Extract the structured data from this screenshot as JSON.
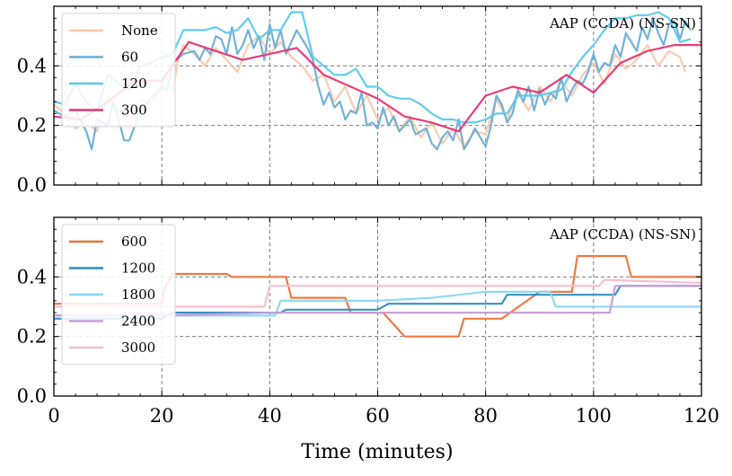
{
  "chart_data": [
    {
      "type": "line",
      "annotation": "AAP (CCDA) (NS-SN)",
      "xlim": [
        0,
        120
      ],
      "ylim": [
        0,
        0.6
      ],
      "xticks": [
        0,
        20,
        40,
        60,
        80,
        100,
        120
      ],
      "yticks": [
        "0.0",
        "0.2",
        "0.4"
      ],
      "ytick_values": [
        0,
        0.2,
        0.4
      ],
      "grid": true,
      "legend_position": "top-left",
      "series": [
        {
          "name": "None",
          "color": "#f8c9ad",
          "x": [
            0,
            2,
            4,
            6,
            8,
            10,
            12,
            14,
            16,
            18,
            20,
            21,
            22,
            23,
            24,
            26,
            28,
            30,
            32,
            34,
            36,
            38,
            40,
            42,
            44,
            46,
            48,
            50,
            52,
            54,
            56,
            58,
            60,
            62,
            64,
            66,
            68,
            70,
            72,
            74,
            76,
            78,
            80,
            82,
            84,
            86,
            88,
            90,
            92,
            94,
            96,
            98,
            100,
            102,
            104,
            106,
            108,
            110,
            112,
            114,
            116,
            117
          ],
          "y": [
            0.27,
            0.24,
            0.19,
            0.21,
            0.18,
            0.3,
            0.25,
            0.22,
            0.29,
            0.27,
            0.33,
            0.36,
            0.31,
            0.42,
            0.47,
            0.44,
            0.4,
            0.46,
            0.42,
            0.38,
            0.47,
            0.5,
            0.44,
            0.48,
            0.43,
            0.4,
            0.35,
            0.37,
            0.28,
            0.33,
            0.24,
            0.3,
            0.22,
            0.26,
            0.18,
            0.23,
            0.16,
            0.21,
            0.14,
            0.19,
            0.13,
            0.18,
            0.17,
            0.29,
            0.22,
            0.31,
            0.25,
            0.33,
            0.28,
            0.35,
            0.3,
            0.37,
            0.41,
            0.34,
            0.44,
            0.39,
            0.42,
            0.47,
            0.4,
            0.45,
            0.43,
            0.38
          ]
        },
        {
          "name": "60",
          "color": "#6aaed6",
          "x": [
            0,
            2,
            4,
            6,
            7,
            8,
            10,
            11,
            12,
            13,
            14,
            16,
            18,
            20,
            21,
            22,
            24,
            26,
            27,
            28,
            29,
            30,
            31,
            32,
            33,
            34,
            35,
            36,
            37,
            38,
            39,
            40,
            41,
            42,
            43,
            44,
            45,
            46,
            47,
            48,
            49,
            50,
            51,
            52,
            53,
            54,
            55,
            56,
            57,
            58,
            59,
            60,
            61,
            62,
            63,
            64,
            65,
            66,
            67,
            68,
            69,
            70,
            71,
            72,
            73,
            74,
            75,
            76,
            77,
            78,
            79,
            80,
            81,
            82,
            83,
            84,
            85,
            86,
            87,
            88,
            89,
            90,
            91,
            92,
            93,
            94,
            95,
            96,
            97,
            98,
            99,
            100,
            101,
            102,
            103,
            104,
            105,
            106,
            107,
            108,
            109,
            110,
            111,
            112,
            113,
            114,
            115,
            116,
            117,
            118
          ],
          "y": [
            0.25,
            0.23,
            0.25,
            0.18,
            0.12,
            0.22,
            0.2,
            0.28,
            0.22,
            0.15,
            0.15,
            0.25,
            0.29,
            0.33,
            0.32,
            0.41,
            0.44,
            0.45,
            0.42,
            0.46,
            0.44,
            0.5,
            0.49,
            0.44,
            0.53,
            0.44,
            0.47,
            0.52,
            0.46,
            0.5,
            0.42,
            0.54,
            0.46,
            0.52,
            0.44,
            0.48,
            0.52,
            0.49,
            0.46,
            0.42,
            0.33,
            0.27,
            0.31,
            0.26,
            0.28,
            0.22,
            0.25,
            0.24,
            0.31,
            0.2,
            0.21,
            0.19,
            0.26,
            0.2,
            0.23,
            0.18,
            0.2,
            0.22,
            0.17,
            0.18,
            0.19,
            0.14,
            0.12,
            0.16,
            0.18,
            0.15,
            0.22,
            0.12,
            0.15,
            0.19,
            0.16,
            0.13,
            0.2,
            0.3,
            0.27,
            0.21,
            0.24,
            0.32,
            0.28,
            0.33,
            0.25,
            0.32,
            0.27,
            0.31,
            0.29,
            0.36,
            0.28,
            0.32,
            0.35,
            0.34,
            0.38,
            0.44,
            0.38,
            0.41,
            0.4,
            0.47,
            0.43,
            0.51,
            0.48,
            0.45,
            0.53,
            0.49,
            0.56,
            0.51,
            0.47,
            0.54,
            0.55,
            0.49,
            0.55,
            0.52
          ]
        },
        {
          "name": "120",
          "color": "#5bc8ec",
          "x": [
            0,
            2,
            4,
            6,
            8,
            10,
            12,
            14,
            16,
            18,
            20,
            22,
            24,
            26,
            28,
            30,
            32,
            34,
            36,
            38,
            40,
            42,
            44,
            46,
            48,
            50,
            52,
            54,
            56,
            58,
            60,
            62,
            64,
            66,
            68,
            70,
            72,
            74,
            76,
            78,
            80,
            82,
            84,
            86,
            88,
            90,
            92,
            94,
            96,
            98,
            100,
            102,
            104,
            106,
            108,
            110,
            112,
            114,
            116,
            118
          ],
          "y": [
            0.28,
            0.27,
            0.34,
            0.28,
            0.25,
            0.37,
            0.34,
            0.32,
            0.4,
            0.41,
            0.43,
            0.44,
            0.52,
            0.52,
            0.52,
            0.53,
            0.51,
            0.52,
            0.56,
            0.49,
            0.52,
            0.52,
            0.58,
            0.58,
            0.43,
            0.4,
            0.37,
            0.37,
            0.39,
            0.33,
            0.33,
            0.3,
            0.29,
            0.29,
            0.27,
            0.24,
            0.22,
            0.22,
            0.21,
            0.21,
            0.22,
            0.24,
            0.24,
            0.3,
            0.3,
            0.3,
            0.31,
            0.32,
            0.38,
            0.43,
            0.47,
            0.52,
            0.56,
            0.56,
            0.57,
            0.57,
            0.58,
            0.56,
            0.48,
            0.49
          ]
        },
        {
          "name": "300",
          "color": "#e8336e",
          "x": [
            0,
            5,
            10,
            15,
            20,
            25,
            30,
            35,
            40,
            45,
            50,
            55,
            60,
            65,
            70,
            75,
            80,
            85,
            90,
            95,
            100,
            105,
            110,
            115,
            120
          ],
          "y": [
            0.23,
            0.22,
            0.28,
            0.35,
            0.35,
            0.48,
            0.45,
            0.42,
            0.44,
            0.46,
            0.37,
            0.33,
            0.29,
            0.23,
            0.21,
            0.18,
            0.3,
            0.33,
            0.31,
            0.37,
            0.31,
            0.41,
            0.45,
            0.47,
            0.47
          ]
        }
      ]
    },
    {
      "type": "line",
      "annotation": "AAP (CCDA) (NS-SN)",
      "xlim": [
        0,
        120
      ],
      "ylim": [
        0,
        0.6
      ],
      "xticks": [
        0,
        20,
        40,
        60,
        80,
        100,
        120
      ],
      "xtick_labels": [
        "0",
        "20",
        "40",
        "60",
        "80",
        "100",
        "120"
      ],
      "yticks": [
        "0.0",
        "0.2",
        "0.4"
      ],
      "ytick_values": [
        0,
        0.2,
        0.4
      ],
      "xlabel": "Time (minutes)",
      "grid": true,
      "legend_position": "top-left",
      "series": [
        {
          "name": "600",
          "color": "#e8743b",
          "x": [
            0,
            20,
            20.5,
            22,
            32,
            33,
            40,
            43,
            44,
            54,
            55,
            60,
            61,
            64,
            65,
            75,
            76,
            82,
            83,
            90,
            95,
            96,
            97,
            100,
            106,
            107,
            120
          ],
          "y": [
            0.31,
            0.31,
            0.36,
            0.41,
            0.41,
            0.4,
            0.4,
            0.4,
            0.33,
            0.33,
            0.28,
            0.28,
            0.28,
            0.22,
            0.2,
            0.2,
            0.26,
            0.26,
            0.26,
            0.35,
            0.35,
            0.35,
            0.47,
            0.47,
            0.47,
            0.4,
            0.4
          ]
        },
        {
          "name": "1200",
          "color": "#2e8bc0",
          "x": [
            0,
            10,
            20,
            22,
            23,
            30,
            40,
            42,
            43,
            50,
            60,
            62,
            63,
            70,
            80,
            83,
            84,
            90,
            100,
            104,
            105,
            120
          ],
          "y": [
            0.26,
            0.26,
            0.26,
            0.28,
            0.28,
            0.28,
            0.28,
            0.28,
            0.29,
            0.29,
            0.29,
            0.31,
            0.31,
            0.31,
            0.31,
            0.31,
            0.34,
            0.34,
            0.34,
            0.34,
            0.37,
            0.37
          ]
        },
        {
          "name": "1800",
          "color": "#8bd6f2",
          "x": [
            0,
            20,
            40,
            41,
            42,
            50,
            60,
            70,
            80,
            90,
            92,
            93,
            100,
            110,
            120
          ],
          "y": [
            0.27,
            0.27,
            0.27,
            0.27,
            0.32,
            0.32,
            0.32,
            0.33,
            0.35,
            0.35,
            0.35,
            0.3,
            0.3,
            0.3,
            0.3
          ]
        },
        {
          "name": "2400",
          "color": "#c89bd6",
          "x": [
            0,
            20,
            40,
            60,
            80,
            100,
            103,
            104,
            120
          ],
          "y": [
            0.27,
            0.27,
            0.28,
            0.28,
            0.28,
            0.28,
            0.28,
            0.37,
            0.37
          ]
        },
        {
          "name": "3000",
          "color": "#f6bcd2",
          "x": [
            0,
            20,
            39,
            40,
            60,
            79,
            80,
            101,
            102,
            120
          ],
          "y": [
            0.3,
            0.3,
            0.3,
            0.37,
            0.37,
            0.37,
            0.37,
            0.37,
            0.39,
            0.38
          ]
        }
      ]
    }
  ]
}
